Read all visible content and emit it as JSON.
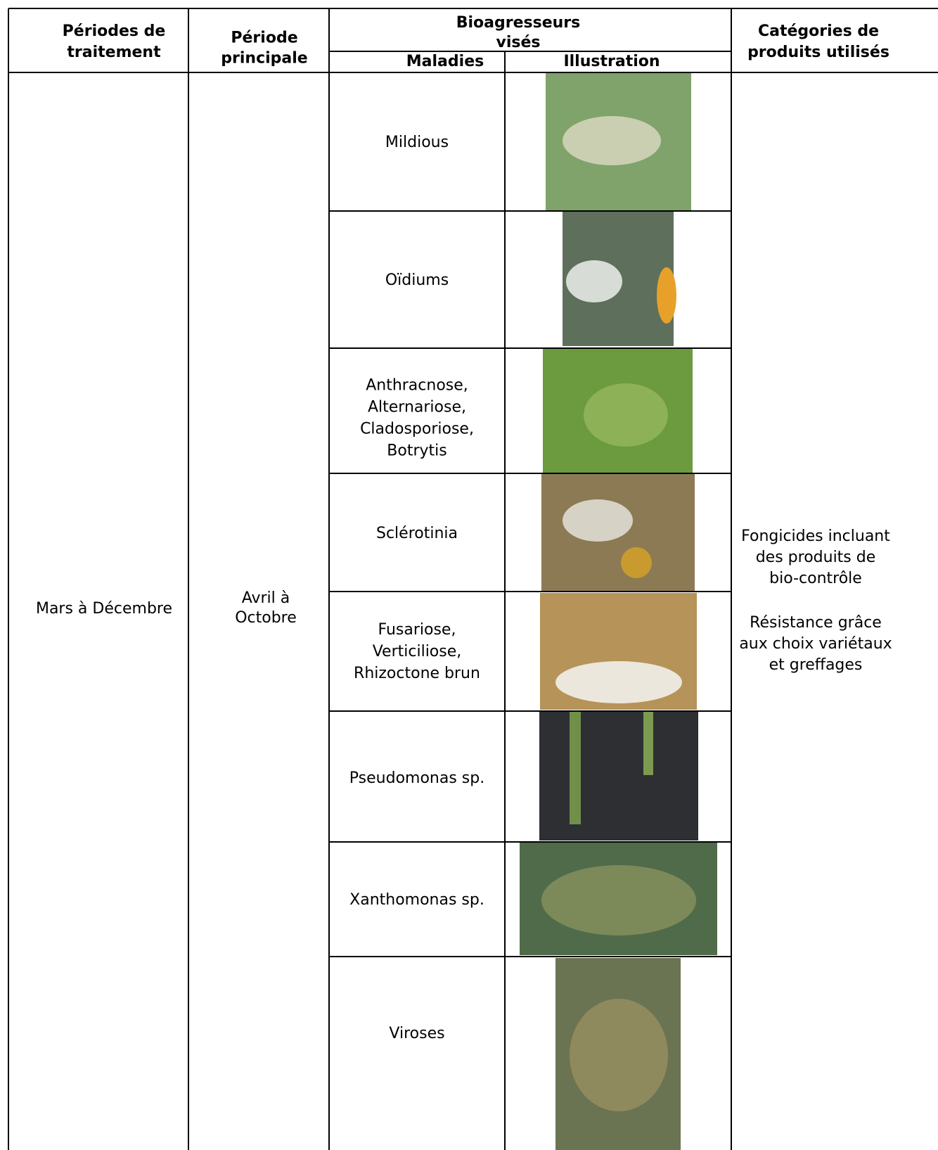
{
  "header": {
    "periods": [
      "Périodes de",
      "traitement"
    ],
    "main_period": [
      "Période",
      "principale"
    ],
    "pests": [
      "Bioagresseurs",
      "visés"
    ],
    "diseases": "Maladies",
    "illustration": "Illustration",
    "products": [
      "Catégories de",
      "produits utilisés"
    ]
  },
  "table": {
    "treatment_period": "Mars à Décembre",
    "main_period": [
      "Avril à",
      "Octobre"
    ],
    "diseases": [
      [
        "Mildious"
      ],
      [
        "Oïdiums"
      ],
      [
        "Anthracnose,",
        "Alternariose,",
        "Cladosporiose,",
        "Botrytis"
      ],
      [
        "Sclérotinia"
      ],
      [
        "Fusariose,",
        "Verticiliose,",
        "Rhizoctone brun"
      ],
      [
        "Pseudomonas sp."
      ],
      [
        "Xanthomonas sp."
      ],
      [
        "Viroses"
      ]
    ],
    "products": [
      [
        "Fongicides incluant",
        "des produits de",
        "bio-contrôle"
      ],
      [
        "Résistance grâce",
        "aux choix variétaux",
        "et greffages"
      ]
    ]
  }
}
